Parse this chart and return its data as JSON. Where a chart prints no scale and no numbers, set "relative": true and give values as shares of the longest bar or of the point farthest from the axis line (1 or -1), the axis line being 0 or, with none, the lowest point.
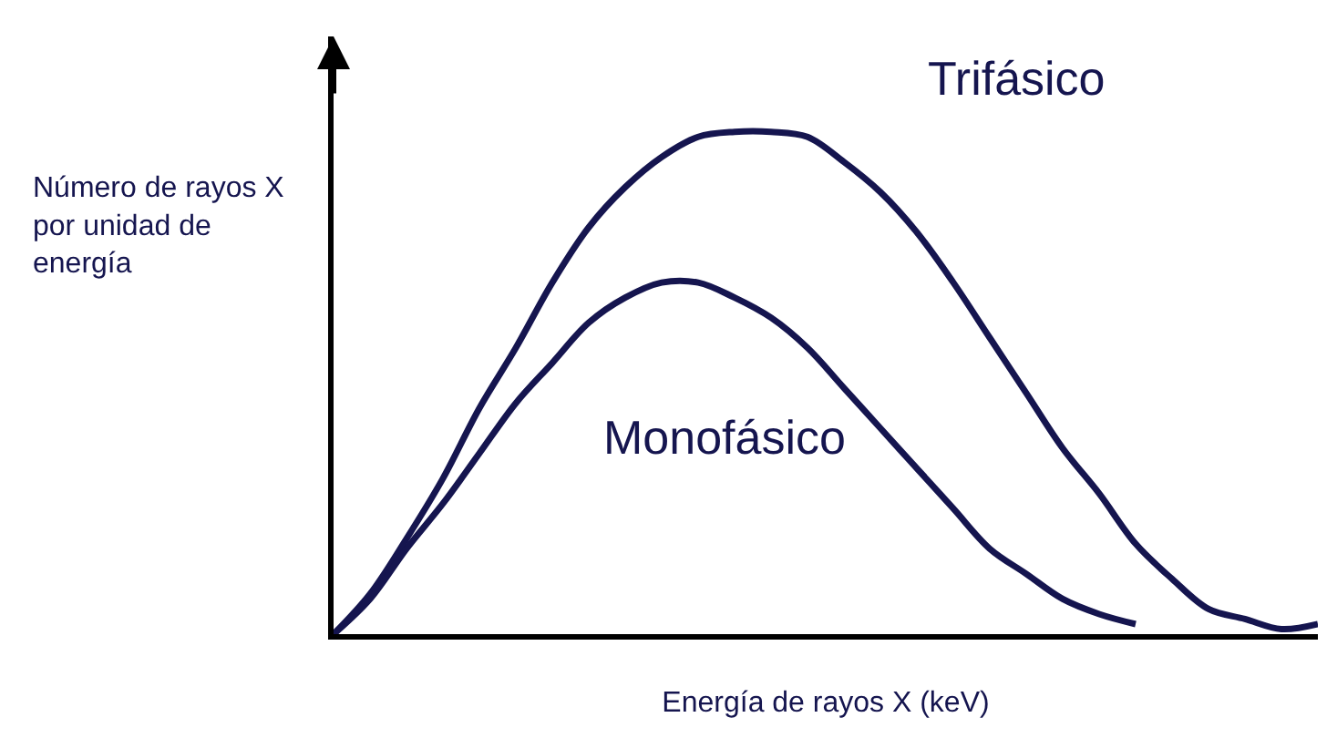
{
  "chart_data": {
    "type": "line",
    "relative": true,
    "xlabel": "Energía de rayos X (keV)",
    "ylabel": "Número de rayos X por unidad de energía",
    "categories": [
      null,
      null,
      null,
      null,
      null,
      null,
      null,
      null,
      null,
      null,
      null,
      null,
      null,
      null,
      null,
      null,
      null,
      null,
      null,
      null,
      null,
      null,
      null,
      null,
      null,
      null,
      null,
      null
    ],
    "series": [
      {
        "name": "Trifásico",
        "color": "#15154f",
        "values": [
          0,
          0.08,
          0.19,
          0.31,
          0.45,
          0.57,
          0.7,
          0.81,
          0.89,
          0.95,
          0.99,
          1,
          1,
          0.99,
          0.94,
          0.88,
          0.8,
          0.7,
          0.59,
          0.48,
          0.37,
          0.28,
          0.18,
          0.11,
          0.05,
          0.03,
          0.01,
          0.02
        ]
      },
      {
        "name": "Monofásico",
        "color": "#15154f",
        "values": [
          0,
          0.07,
          0.17,
          0.26,
          0.36,
          0.46,
          0.54,
          0.62,
          0.67,
          0.7,
          0.7,
          0.67,
          0.63,
          0.57,
          0.49,
          0.41,
          0.33,
          0.25,
          0.17,
          0.12,
          0.07,
          0.04,
          0.02,
          null,
          null,
          null,
          null,
          null
        ]
      }
    ]
  }
}
